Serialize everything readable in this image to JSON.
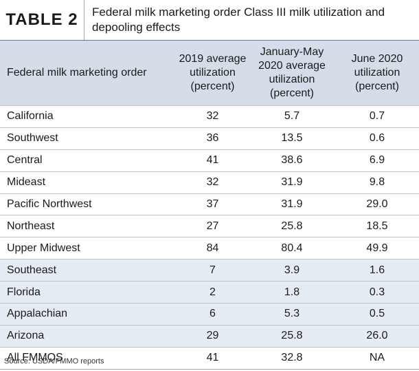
{
  "table_label": "TABLE 2",
  "title": "Federal milk marketing order Class III milk utilization and depooling effects",
  "columns": [
    "Federal milk marketing order",
    "2019 average utilization (percent)",
    "January-May 2020 average utilization (percent)",
    "June 2020 utilization (percent)"
  ],
  "rows": [
    {
      "name": "California",
      "y2019": "32",
      "janmay2020": "5.7",
      "june2020": "0.7"
    },
    {
      "name": "Southwest",
      "y2019": "36",
      "janmay2020": "13.5",
      "june2020": "0.6"
    },
    {
      "name": "Central",
      "y2019": "41",
      "janmay2020": "38.6",
      "june2020": "6.9"
    },
    {
      "name": "Mideast",
      "y2019": "32",
      "janmay2020": "31.9",
      "june2020": "9.8"
    },
    {
      "name": "Pacific Northwest",
      "y2019": "37",
      "janmay2020": "31.9",
      "june2020": "29.0"
    },
    {
      "name": "Northeast",
      "y2019": "27",
      "janmay2020": "25.8",
      "june2020": "18.5"
    },
    {
      "name": "Upper Midwest",
      "y2019": "84",
      "janmay2020": "80.4",
      "june2020": "49.9"
    },
    {
      "name": "Southeast",
      "y2019": "7",
      "janmay2020": "3.9",
      "june2020": "1.6"
    },
    {
      "name": "Florida",
      "y2019": "2",
      "janmay2020": "1.8",
      "june2020": "0.3"
    },
    {
      "name": "Appalachian",
      "y2019": "6",
      "janmay2020": "5.3",
      "june2020": "0.5"
    },
    {
      "name": "Arizona",
      "y2019": "29",
      "janmay2020": "25.8",
      "june2020": "26.0"
    },
    {
      "name": "All FMMOS",
      "y2019": "41",
      "janmay2020": "32.8",
      "june2020": "NA"
    }
  ],
  "source": "Source: USDA/FMMO reports",
  "colors": {
    "header_bg": "#d5dde8",
    "shaded_row": "#e6ecf3",
    "accent_line": "#5b7fa8"
  }
}
